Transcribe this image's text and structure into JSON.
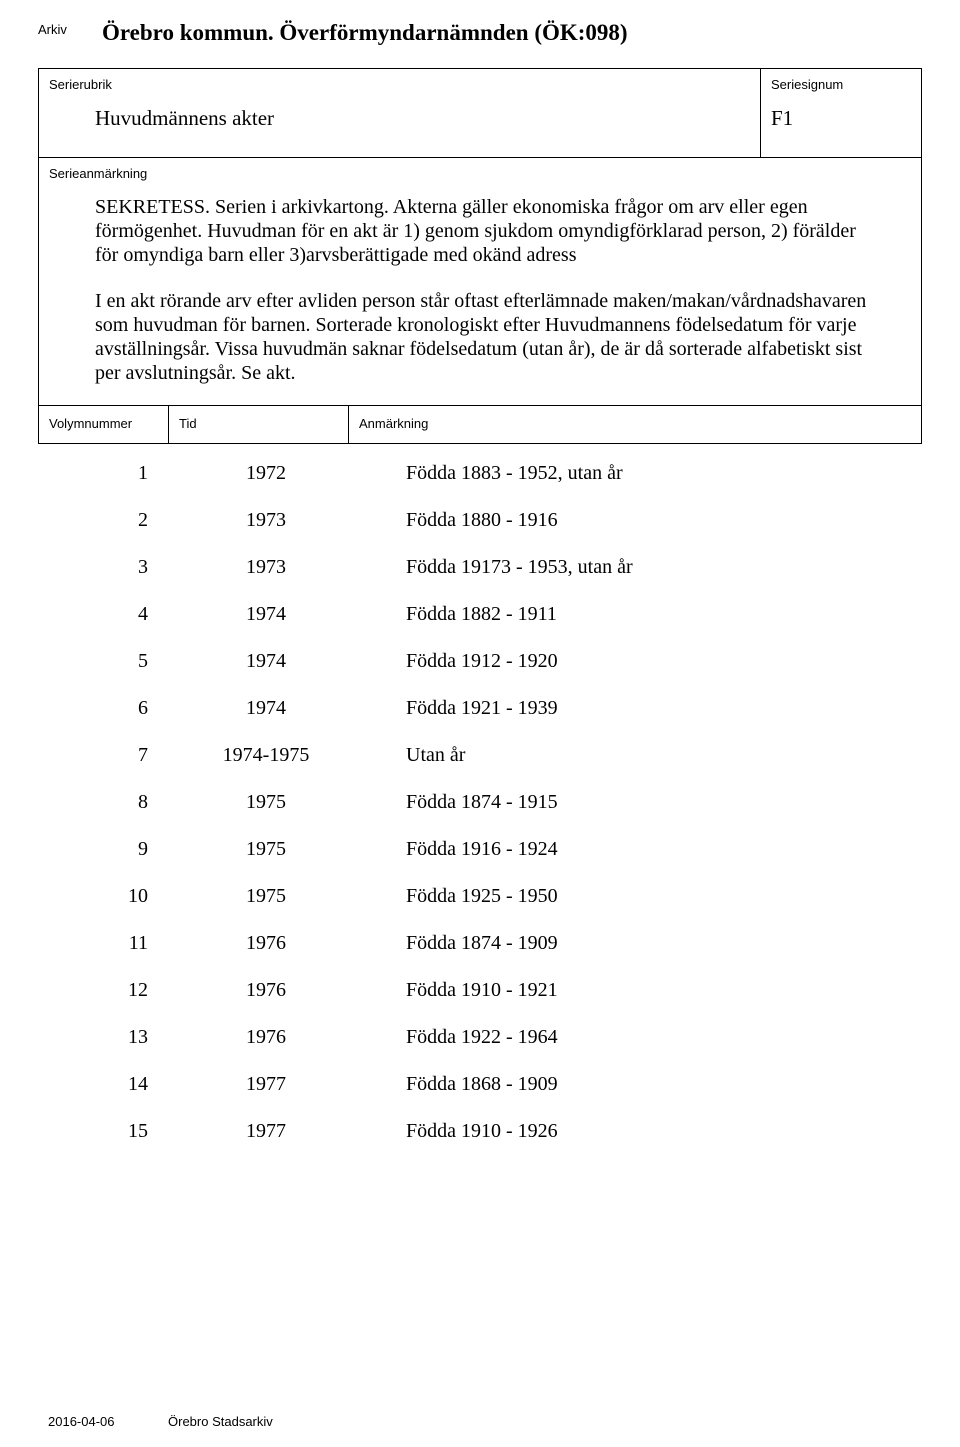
{
  "header": {
    "arkiv_label": "Arkiv",
    "arkiv_title": "Örebro kommun. Överförmyndarnämnden (ÖK:098)"
  },
  "serie": {
    "rubrik_label": "Serierubrik",
    "rubrik_value": "Huvudmännens akter",
    "signum_label": "Seriesignum",
    "signum_value": "F1",
    "anm_label": "Serieanmärkning",
    "anm_para1": "SEKRETESS.\nSerien i arkivkartong.\nAkterna gäller ekonomiska frågor om arv eller egen förmögenhet.\nHuvudman för en akt är 1)\ngenom sjukdom omyndigförklarad person, 2) förälder för omyndiga barn eller 3)arvsberättigade med okänd adress",
    "anm_para2": "I en akt rörande arv efter avliden person står oftast efterlämnade maken/makan/vårdnadshavaren som huvudman för barnen.\nSorterade kronologiskt efter Huvudmannens födelsedatum för varje avställningsår. Vissa huvudmän saknar födelsedatum (utan år), de är då sorterade alfabetiskt sist per avslutningsår. Se akt."
  },
  "table": {
    "col_vol": "Volymnummer",
    "col_tid": "Tid",
    "col_anm": "Anmärkning",
    "rows": [
      {
        "vol": "1",
        "tid": "1972",
        "anm": "Födda 1883 - 1952, utan år"
      },
      {
        "vol": "2",
        "tid": "1973",
        "anm": "Födda 1880 - 1916"
      },
      {
        "vol": "3",
        "tid": "1973",
        "anm": "Födda 19173 - 1953, utan år"
      },
      {
        "vol": "4",
        "tid": "1974",
        "anm": "Födda 1882 - 1911"
      },
      {
        "vol": "5",
        "tid": "1974",
        "anm": "Födda 1912 - 1920"
      },
      {
        "vol": "6",
        "tid": "1974",
        "anm": "Födda 1921 - 1939"
      },
      {
        "vol": "7",
        "tid": "1974-1975",
        "anm": "Utan år"
      },
      {
        "vol": "8",
        "tid": "1975",
        "anm": "Födda 1874 - 1915"
      },
      {
        "vol": "9",
        "tid": "1975",
        "anm": "Födda 1916 - 1924"
      },
      {
        "vol": "10",
        "tid": "1975",
        "anm": "Födda 1925 - 1950"
      },
      {
        "vol": "11",
        "tid": "1976",
        "anm": "Födda 1874 - 1909"
      },
      {
        "vol": "12",
        "tid": "1976",
        "anm": "Födda 1910 - 1921"
      },
      {
        "vol": "13",
        "tid": "1976",
        "anm": "Födda 1922 - 1964"
      },
      {
        "vol": "14",
        "tid": "1977",
        "anm": "Födda 1868 - 1909"
      },
      {
        "vol": "15",
        "tid": "1977",
        "anm": "Födda 1910 - 1926"
      }
    ]
  },
  "footer": {
    "date": "2016-04-06",
    "source": "Örebro Stadsarkiv"
  }
}
